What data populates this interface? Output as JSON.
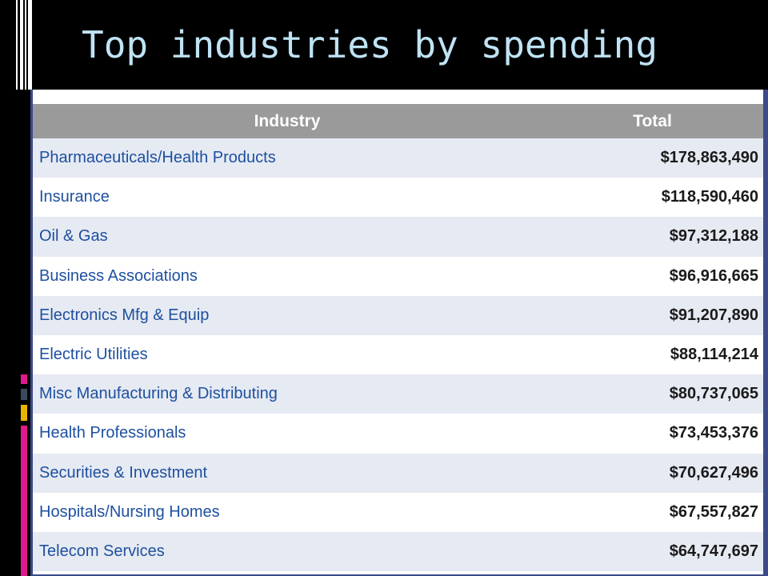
{
  "slide": {
    "title": "Top industries by spending"
  },
  "table": {
    "headers": {
      "industry": "Industry",
      "total": "Total"
    },
    "rows": [
      {
        "industry": "Pharmaceuticals/Health Products",
        "total": "$178,863,490"
      },
      {
        "industry": "Insurance",
        "total": "$118,590,460"
      },
      {
        "industry": "Oil & Gas",
        "total": "$97,312,188"
      },
      {
        "industry": "Business Associations",
        "total": "$96,916,665"
      },
      {
        "industry": "Electronics Mfg & Equip",
        "total": "$91,207,890"
      },
      {
        "industry": "Electric Utilities",
        "total": "$88,114,214"
      },
      {
        "industry": "Misc Manufacturing & Distributing",
        "total": "$80,737,065"
      },
      {
        "industry": "Health Professionals",
        "total": "$73,453,376"
      },
      {
        "industry": "Securities & Investment",
        "total": "$70,627,496"
      },
      {
        "industry": "Hospitals/Nursing Homes",
        "total": "$67,557,827"
      },
      {
        "industry": "Telecom Services",
        "total": "$64,747,697"
      }
    ]
  },
  "colors": {
    "background": "#000000",
    "title": "#bfe3f4",
    "header_bg": "#9a9a9a",
    "industry_text": "#1e50a0",
    "row_stripe": "#e6eaf2",
    "panel_border": "#3b4a8c",
    "accent_gold": "#e8b400",
    "accent_magenta": "#e0198c",
    "accent_slate": "#3a4a5c"
  }
}
